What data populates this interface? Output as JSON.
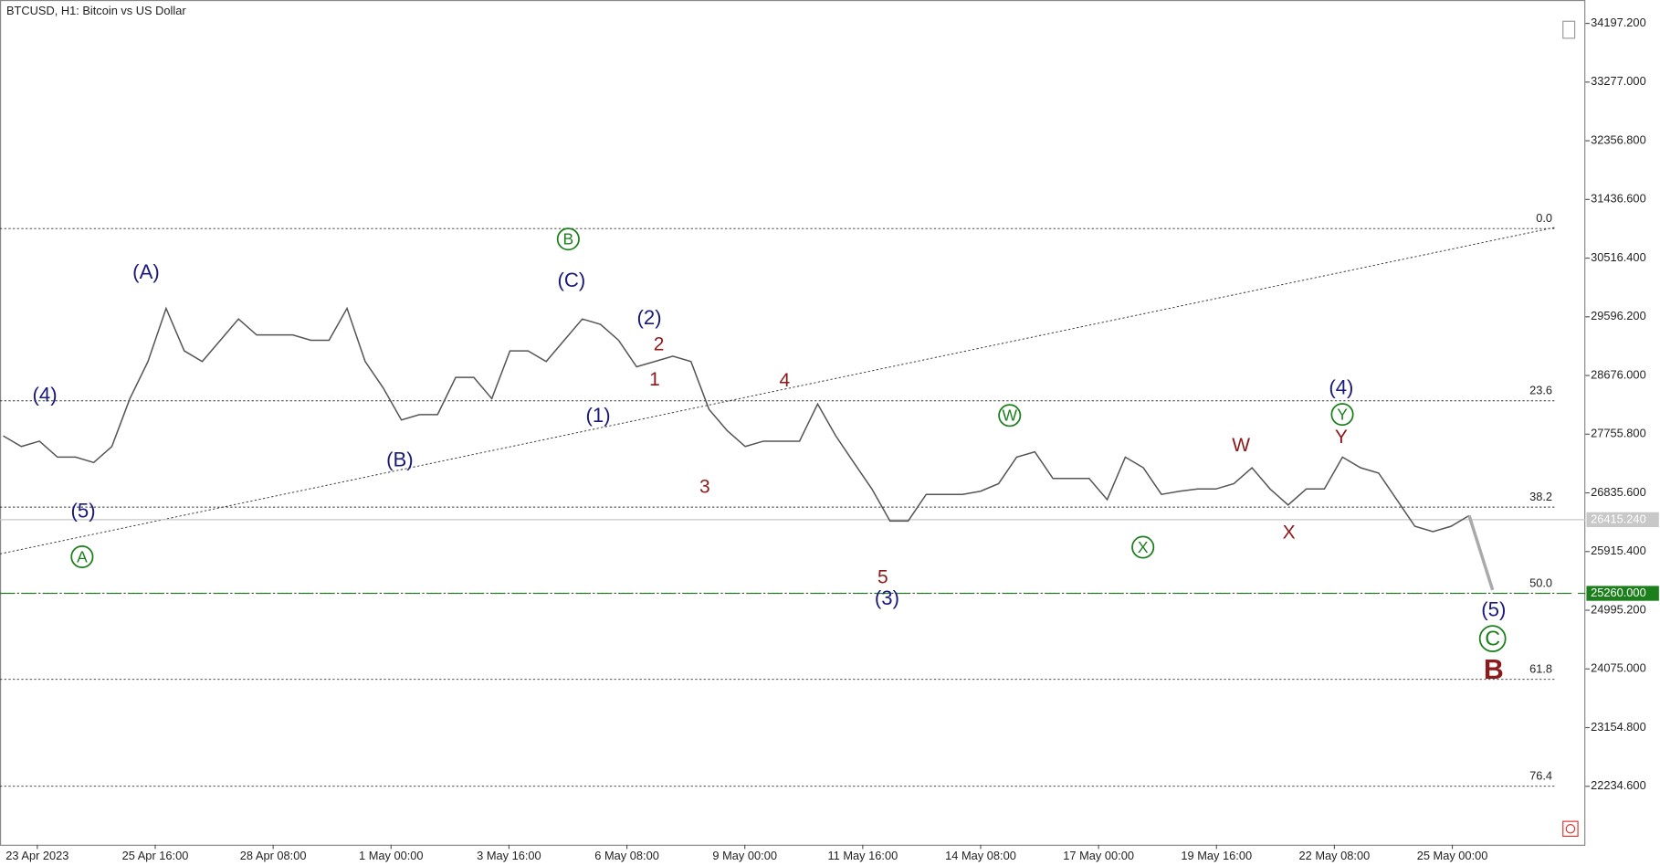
{
  "chart_data": {
    "type": "line",
    "title": "BTCUSD, H1:  Bitcoin vs US Dollar",
    "xtick_labels": [
      "23 Apr 2023",
      "25 Apr 16:00",
      "28 Apr 08:00",
      "1 May 00:00",
      "3 May 16:00",
      "6 May 08:00",
      "9 May 00:00",
      "11 May 16:00",
      "14 May 08:00",
      "17 May 00:00",
      "19 May 16:00",
      "22 May 08:00",
      "25 May 00:00"
    ],
    "ylim": [
      21318,
      34564
    ],
    "yticks": [
      {
        "value": 34197.2,
        "label": "34197.200"
      },
      {
        "value": 33277.0,
        "label": "33277.000"
      },
      {
        "value": 32356.8,
        "label": "32356.800"
      },
      {
        "value": 31436.6,
        "label": "31436.600"
      },
      {
        "value": 30516.4,
        "label": "30516.400"
      },
      {
        "value": 29596.2,
        "label": "29596.200"
      },
      {
        "value": 28676.0,
        "label": "28676.000"
      },
      {
        "value": 27755.8,
        "label": "27755.800"
      },
      {
        "value": 26835.6,
        "label": "26835.600"
      },
      {
        "value": 25915.4,
        "label": "25915.400"
      },
      {
        "value": 24995.2,
        "label": "24995.200"
      },
      {
        "value": 24075.0,
        "label": "24075.000"
      },
      {
        "value": 23154.8,
        "label": "23154.800"
      },
      {
        "value": 22234.6,
        "label": "22234.600"
      }
    ],
    "series": [
      {
        "color": "#555555",
        "values": [
          27729,
          27562,
          27646,
          27396,
          27396,
          27312,
          27562,
          28312,
          28896,
          29729,
          29063,
          28896,
          29229,
          29563,
          29313,
          29313,
          29313,
          29229,
          29229,
          29729,
          28896,
          28479,
          27979,
          28062,
          28062,
          28646,
          28646,
          28312,
          29063,
          29063,
          28896,
          29229,
          29563,
          29479,
          29229,
          28813,
          28896,
          28979,
          28896,
          28146,
          27812,
          27562,
          27646,
          27646,
          27646,
          28229,
          27729,
          27312,
          26896,
          26395,
          26395,
          26812,
          26812,
          26812,
          26862,
          26979,
          27396,
          27479,
          27062,
          27062,
          27062,
          26729,
          27396,
          27229,
          26812,
          26862,
          26896,
          26896,
          26979,
          27229,
          26896,
          26645,
          26896,
          26896,
          27396,
          27229,
          27146,
          26729,
          26312,
          26229,
          26312,
          26479
        ]
      }
    ],
    "projection": [
      26479,
      25312
    ],
    "trendline": [
      25879,
      30997
    ],
    "current_price": {
      "value": 26415.24,
      "label": "26415.240"
    },
    "target_price": {
      "value": 25260.0,
      "label": "25260.000"
    },
    "fib_levels": [
      {
        "label": "0.0",
        "price": 30980
      },
      {
        "label": "23.6",
        "price": 28279
      },
      {
        "label": "38.2",
        "price": 26612
      },
      {
        "label": "50.0",
        "price": 25262
      },
      {
        "label": "61.8",
        "price": 23911
      },
      {
        "label": "76.4",
        "price": 22235
      }
    ],
    "wave_labels": [
      {
        "text": "(4)",
        "color": "#1a1a7a"
      },
      {
        "text": "(5)",
        "color": "#1a1a7a"
      },
      {
        "text": "A",
        "color": "#1b7f1b",
        "circled": true
      },
      {
        "text": "(A)",
        "color": "#1a1a7a"
      },
      {
        "text": "(B)",
        "color": "#1a1a7a"
      },
      {
        "text": "B",
        "color": "#1b7f1b",
        "circled": true
      },
      {
        "text": "(C)",
        "color": "#1a1a7a"
      },
      {
        "text": "(2)",
        "color": "#1a1a7a"
      },
      {
        "text": "2",
        "color": "#8b1a1a"
      },
      {
        "text": "1",
        "color": "#8b1a1a"
      },
      {
        "text": "(1)",
        "color": "#1a1a7a"
      },
      {
        "text": "3",
        "color": "#8b1a1a"
      },
      {
        "text": "4",
        "color": "#8b1a1a"
      },
      {
        "text": "5",
        "color": "#8b1a1a"
      },
      {
        "text": "(3)",
        "color": "#1a1a7a"
      },
      {
        "text": "W",
        "color": "#1b7f1b",
        "circled": true
      },
      {
        "text": "X",
        "color": "#1b7f1b",
        "circled": true
      },
      {
        "text": "W",
        "color": "#8b1a1a"
      },
      {
        "text": "X",
        "color": "#8b1a1a"
      },
      {
        "text": "(4)",
        "color": "#1a1a7a"
      },
      {
        "text": "Y",
        "color": "#1b7f1b",
        "circled": true
      },
      {
        "text": "Y",
        "color": "#8b1a1a"
      },
      {
        "text": "(5)",
        "color": "#1a1a7a"
      },
      {
        "text": "C",
        "color": "#1b7f1b",
        "circled": true
      },
      {
        "text": "B",
        "color": "#8b1a1a"
      }
    ]
  }
}
